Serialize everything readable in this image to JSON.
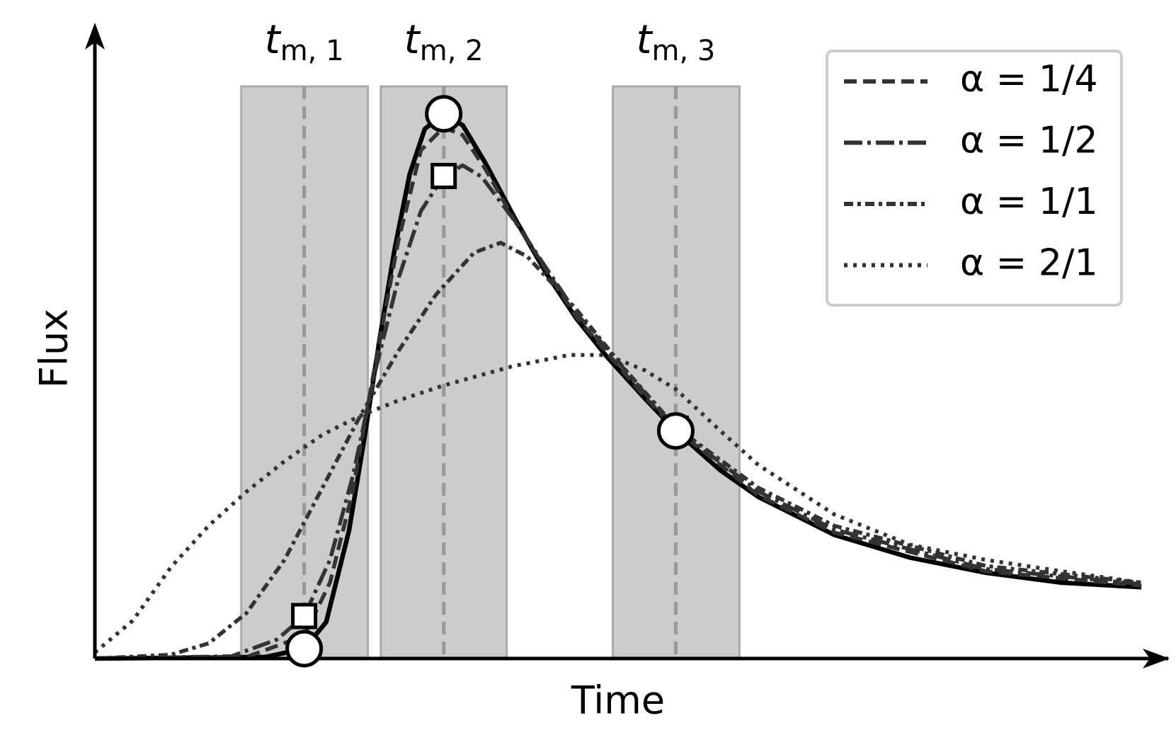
{
  "chart_data": {
    "type": "line",
    "x_label": "Time",
    "y_label": "Flux",
    "xlim": [
      0,
      14.2
    ],
    "ylim": [
      0,
      8.4
    ],
    "legend": "upper right",
    "windows": [
      {
        "base": "t",
        "sub": "m, 1",
        "start": 1.93,
        "end": 3.6,
        "center": 2.76
      },
      {
        "base": "t",
        "sub": "m, 2",
        "start": 3.77,
        "end": 5.43,
        "center": 4.6
      },
      {
        "base": "t",
        "sub": "m, 3",
        "start": 6.83,
        "end": 8.5,
        "center": 7.66
      }
    ],
    "series": [
      {
        "color": "#000000",
        "dash": "solid",
        "x": [
          0,
          2.25,
          2.76,
          3.05,
          3.35,
          3.55,
          3.75,
          3.95,
          4.15,
          4.35,
          4.6,
          4.85,
          5.15,
          5.55,
          5.95,
          6.35,
          6.75,
          7.25,
          7.66,
          8.25,
          8.75,
          9.75,
          10.75,
          11.75,
          12.75,
          13.8
        ],
        "values": [
          0,
          0.02,
          0.13,
          0.48,
          1.68,
          2.88,
          4.18,
          5.38,
          6.38,
          6.98,
          7.18,
          7.03,
          6.53,
          5.78,
          5.08,
          4.48,
          3.98,
          3.43,
          3.0,
          2.48,
          2.13,
          1.63,
          1.33,
          1.13,
          1.0,
          0.94
        ]
      },
      {
        "name": "α = 1/4",
        "color": "#333333",
        "dash": "dashed",
        "x": [
          0,
          2.0,
          2.76,
          3.1,
          3.4,
          3.7,
          4.0,
          4.3,
          4.6,
          4.85,
          5.15,
          5.55,
          6.35,
          7.25,
          7.66,
          8.75,
          9.75,
          11.75,
          13.8
        ],
        "values": [
          0,
          0.02,
          0.3,
          1.0,
          2.2,
          3.9,
          5.5,
          6.7,
          7.0,
          6.9,
          6.45,
          5.75,
          4.5,
          3.45,
          3.02,
          2.15,
          1.66,
          1.15,
          0.96
        ]
      },
      {
        "name": "α = 1/2",
        "color": "#333333",
        "dash": "longdashdot",
        "x": [
          0,
          1.8,
          2.4,
          2.76,
          3.1,
          3.4,
          3.7,
          4.0,
          4.3,
          4.6,
          4.85,
          5.1,
          5.55,
          6.35,
          7.25,
          7.66,
          8.75,
          9.75,
          11.75,
          13.8
        ],
        "values": [
          0,
          0.03,
          0.25,
          0.56,
          1.3,
          2.4,
          3.8,
          5.0,
          5.9,
          6.36,
          6.5,
          6.35,
          5.75,
          4.55,
          3.5,
          3.03,
          2.2,
          1.7,
          1.18,
          0.98
        ]
      },
      {
        "name": "α = 1/1",
        "color": "#333333",
        "dash": "dashdot",
        "x": [
          0,
          1.0,
          1.5,
          2.0,
          2.5,
          3.0,
          3.5,
          4.0,
          4.5,
          5.0,
          5.35,
          5.7,
          6.35,
          7.0,
          7.66,
          8.75,
          9.75,
          11.75,
          13.8
        ],
        "values": [
          0,
          0.05,
          0.2,
          0.6,
          1.3,
          2.25,
          3.2,
          4.05,
          4.8,
          5.35,
          5.48,
          5.3,
          4.6,
          3.8,
          3.05,
          2.25,
          1.75,
          1.22,
          1.0
        ]
      },
      {
        "name": "α = 2/1",
        "color": "#333333",
        "dash": "dotted",
        "x": [
          0,
          0.5,
          1.0,
          1.5,
          2.0,
          2.5,
          3.0,
          3.5,
          4.0,
          4.6,
          5.5,
          6.25,
          6.75,
          7.25,
          7.66,
          8.25,
          8.75,
          9.75,
          10.75,
          11.75,
          12.75,
          13.8
        ],
        "values": [
          0.08,
          0.5,
          1.2,
          1.75,
          2.2,
          2.6,
          2.95,
          3.2,
          3.4,
          3.6,
          3.85,
          4.0,
          4.0,
          3.8,
          3.55,
          3.0,
          2.55,
          1.9,
          1.5,
          1.3,
          1.15,
          1.0
        ]
      }
    ],
    "markers": [
      {
        "shape": "square",
        "x": [
          2.76,
          4.6,
          7.66
        ],
        "values": [
          0.56,
          6.36,
          3.03
        ]
      },
      {
        "shape": "circle",
        "x": [
          2.76,
          4.6,
          7.66
        ],
        "values": [
          0.13,
          7.18,
          3.0
        ]
      }
    ]
  }
}
